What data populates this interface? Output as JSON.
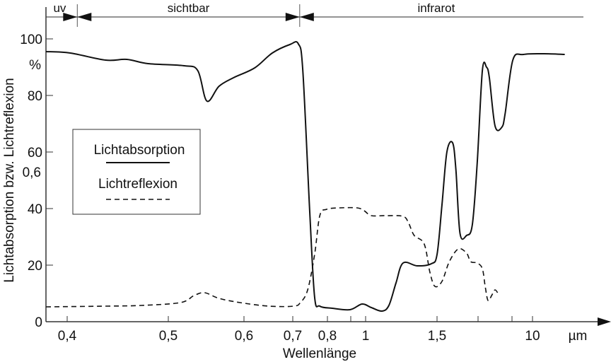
{
  "chart_data": {
    "type": "line",
    "xlabel": "Wellenlänge",
    "x_unit": "µm",
    "ylabel": "Lichtabsorption bzw. Lichtreflexion",
    "y_unit": "%",
    "x_scale": "nonlinear (expanded visible range)",
    "xlim": [
      0.38,
      20
    ],
    "ylim": [
      0,
      100
    ],
    "x_ticks": [
      {
        "value": 0.4,
        "label": "0,4"
      },
      {
        "value": 0.5,
        "label": "0,5"
      },
      {
        "value": 0.6,
        "label": "0,6"
      },
      {
        "value": 0.7,
        "label": "0,7"
      },
      {
        "value": 0.8,
        "label": "0,8"
      },
      {
        "value": 0.9,
        "label": ""
      },
      {
        "value": 1,
        "label": "1"
      },
      {
        "value": 1.5,
        "label": "1,5"
      },
      {
        "value": 2,
        "label": ""
      },
      {
        "value": 5,
        "label": ""
      },
      {
        "value": 10,
        "label": "10"
      }
    ],
    "y_ticks": [
      {
        "value": 0,
        "label": "0"
      },
      {
        "value": 20,
        "label": "20"
      },
      {
        "value": 40,
        "label": "40"
      },
      {
        "value": 60,
        "label": "60"
      },
      {
        "value": 80,
        "label": "80"
      },
      {
        "value": 100,
        "label": "100"
      }
    ],
    "y_extra_labels": [
      {
        "value": 53,
        "label": "0,6"
      },
      {
        "value": 91,
        "label": "%"
      }
    ],
    "grid": false,
    "legend_position": "left-middle",
    "regions": [
      {
        "label": "uv",
        "from": 0.38,
        "to": 0.41
      },
      {
        "label": "sichtbar",
        "from": 0.41,
        "to": 0.72
      },
      {
        "label": "infrarot",
        "from": 0.72,
        "to": 20
      }
    ],
    "series": [
      {
        "name": "Lichtabsorption",
        "style": "solid",
        "x": [
          0.379,
          0.403,
          0.438,
          0.459,
          0.48,
          0.521,
          0.539,
          0.551,
          0.567,
          0.586,
          0.622,
          0.658,
          0.694,
          0.716,
          0.729,
          0.749,
          0.763,
          0.778,
          0.821,
          0.897,
          0.976,
          1.04,
          1.114,
          1.163,
          1.213,
          1.262,
          1.361,
          1.46,
          1.5,
          1.56,
          1.62,
          1.69,
          1.73,
          1.78,
          1.86,
          1.93,
          1.99,
          2.38,
          2.75,
          3.0,
          3.5,
          4.1,
          4.4,
          5.2,
          7.8,
          12.9,
          18
        ],
        "y": [
          95.5,
          95,
          92.5,
          92.75,
          91.25,
          90.5,
          88.75,
          78,
          83.25,
          86.25,
          89.75,
          95,
          98,
          98.25,
          88.75,
          38.75,
          8.75,
          5.5,
          4.75,
          4.25,
          6.25,
          5,
          3.75,
          5.75,
          13.75,
          20.75,
          19.75,
          20.5,
          23.75,
          41.25,
          60,
          63.25,
          53.75,
          31.25,
          30.5,
          34.25,
          56.25,
          88.75,
          90,
          86.25,
          69.25,
          68.75,
          73.75,
          92.5,
          94.5,
          94.75,
          94.5
        ]
      },
      {
        "name": "Lichtreflexion",
        "style": "dashed",
        "x": [
          0.379,
          0.438,
          0.473,
          0.516,
          0.534,
          0.548,
          0.567,
          0.595,
          0.651,
          0.702,
          0.722,
          0.743,
          0.763,
          0.778,
          0.798,
          0.852,
          0.943,
          0.99,
          1.04,
          1.14,
          1.262,
          1.3,
          1.34,
          1.41,
          1.45,
          1.485,
          1.56,
          1.65,
          1.76,
          1.86,
          1.91,
          1.99,
          2.38,
          2.63,
          2.88,
          3.2,
          3.5,
          3.8
        ],
        "y": [
          5.25,
          5.5,
          5.75,
          6.75,
          9.25,
          10.25,
          8.25,
          6.75,
          5.5,
          5.5,
          6.75,
          11.25,
          23.75,
          37.5,
          39.75,
          40.25,
          40.25,
          39.25,
          37.5,
          37.5,
          37.25,
          35,
          30.5,
          27.5,
          17.5,
          12.5,
          14.25,
          21.25,
          25.75,
          24.25,
          21.25,
          20.75,
          18.75,
          12.5,
          7.5,
          9.25,
          11.25,
          9.75
        ]
      }
    ]
  }
}
